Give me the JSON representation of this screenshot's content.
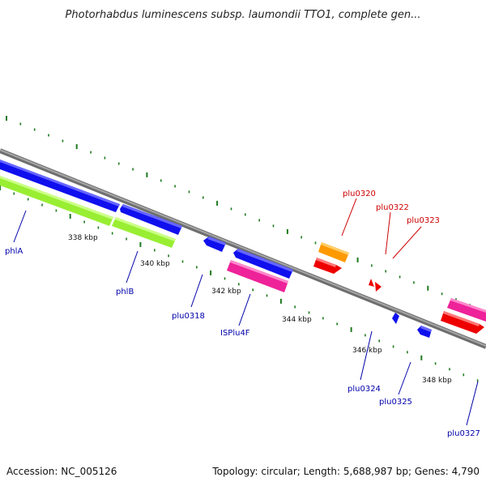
{
  "title": "Photorhabdus luminescens subsp. laumondii TTO1, complete gen...",
  "footer": {
    "accession": "Accession: NC_005126",
    "summary": "Topology: circular; Length: 5,688,987 bp; Genes: 4,790"
  },
  "colors": {
    "backbone": "#8a8a8a",
    "tick": "#1e7a1e",
    "blue_gene": "#1010ee",
    "green_gene": "#99ee33",
    "pink_gene": "#ee2299",
    "orange_gene": "#ff9900",
    "red_gene": "#ee0000",
    "label_blue": "#0000aa",
    "label_red": "#cc0000"
  },
  "scale_labels": [
    "338 kbp",
    "340 kbp",
    "342 kbp",
    "344 kbp",
    "346 kbp",
    "348 kbp"
  ],
  "gene_labels_lower": [
    "phlA",
    "phlB",
    "plu0318",
    "ISPlu4F",
    "plu0324",
    "plu0325",
    "plu0327"
  ],
  "gene_labels_upper": [
    "plu0320",
    "plu0322",
    "plu0323"
  ]
}
